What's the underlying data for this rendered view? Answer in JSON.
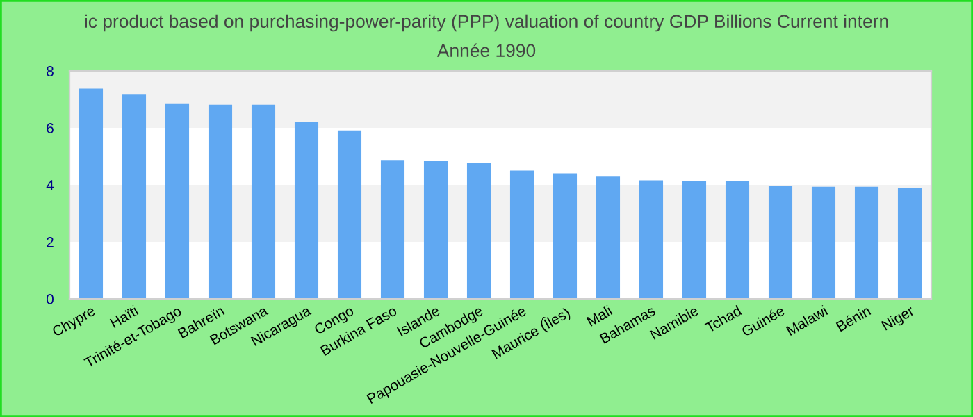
{
  "chart_data": {
    "type": "bar",
    "title": "ic product based on purchasing-power-parity (PPP) valuation of country GDP Billions Current intern",
    "subtitle": "Année 1990",
    "categories": [
      "Chypre",
      "Haïti",
      "Trinité-et-Tobago",
      "Bahreïn",
      "Botswana",
      "Nicaragua",
      "Congo",
      "Burkina Faso",
      "Islande",
      "Cambodge",
      "Papouasie-Nouvelle-Guinée",
      "Maurice (Îles)",
      "Mali",
      "Bahamas",
      "Namibie",
      "Tchad",
      "Guinée",
      "Malawi",
      "Bénin",
      "Niger"
    ],
    "values": [
      7.38,
      7.19,
      6.86,
      6.81,
      6.81,
      6.2,
      5.91,
      4.87,
      4.83,
      4.78,
      4.5,
      4.4,
      4.31,
      4.16,
      4.12,
      4.12,
      3.97,
      3.93,
      3.93,
      3.88
    ],
    "color": "#60a8f2",
    "ylim": [
      0,
      8
    ],
    "yticks": [
      0,
      2,
      4,
      6,
      8
    ],
    "bands": [
      {
        "axis": "y",
        "from": 2,
        "to": 4,
        "color": "#f2f2f2"
      },
      {
        "axis": "y",
        "from": 6,
        "to": 8,
        "color": "#f2f2f2"
      }
    ],
    "grid": false,
    "legend": false
  }
}
